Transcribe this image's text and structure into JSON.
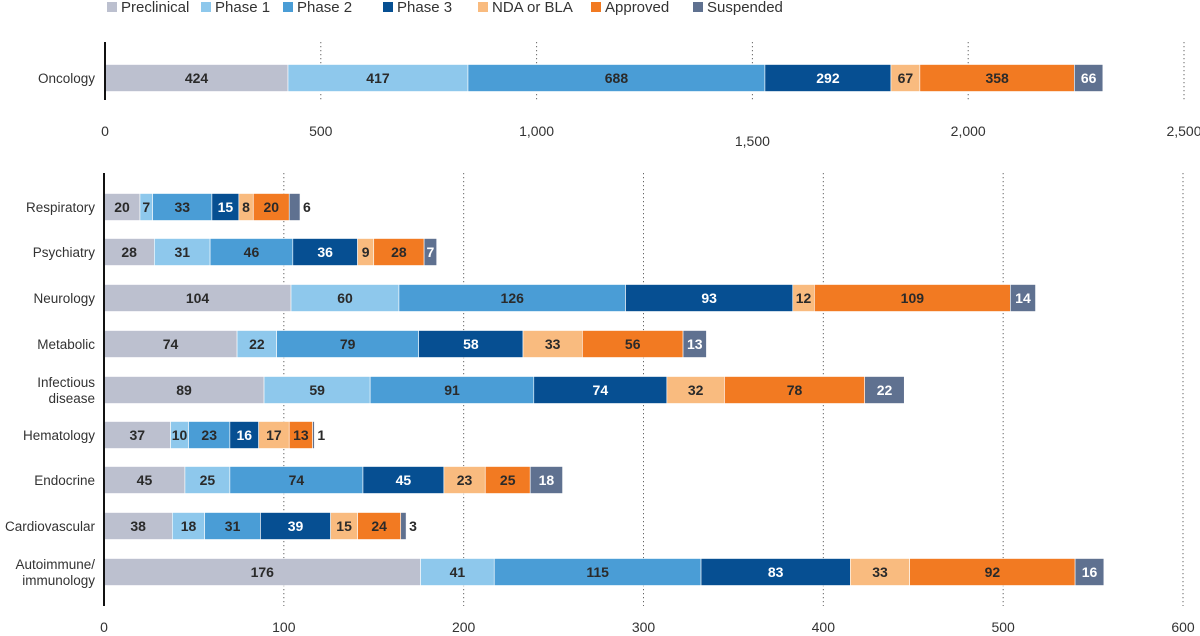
{
  "legend": [
    {
      "label": "Preclinical",
      "color": "#BCC0CF",
      "text_color": "#2a2a2a"
    },
    {
      "label": "Phase 1",
      "color": "#8EC8EC",
      "text_color": "#2a2a2a"
    },
    {
      "label": "Phase 2",
      "color": "#4A9DD6",
      "text_color": "#2a2a2a"
    },
    {
      "label": "Phase 3",
      "color": "#064F92",
      "text_color": "#ffffff"
    },
    {
      "label": "NDA or BLA",
      "color": "#F9BB7F",
      "text_color": "#2a2a2a"
    },
    {
      "label": "Approved",
      "color": "#F27A22",
      "text_color": "#2a2a2a"
    },
    {
      "label": "Suspended",
      "color": "#5F7190",
      "text_color": "#ffffff"
    }
  ],
  "chart_data": [
    {
      "type": "bar",
      "orientation": "horizontal",
      "stacked": true,
      "categories": [
        "Oncology"
      ],
      "series": [
        {
          "name": "Preclinical",
          "values": [
            424
          ]
        },
        {
          "name": "Phase 1",
          "values": [
            417
          ]
        },
        {
          "name": "Phase 2",
          "values": [
            688
          ]
        },
        {
          "name": "Phase 3",
          "values": [
            292
          ]
        },
        {
          "name": "NDA or BLA",
          "values": [
            67
          ]
        },
        {
          "name": "Approved",
          "values": [
            358
          ]
        },
        {
          "name": "Suspended",
          "values": [
            66
          ]
        }
      ],
      "xlim": [
        0,
        2500
      ],
      "xticks": [
        {
          "value": 0,
          "label": "0"
        },
        {
          "value": 500,
          "label": "500"
        },
        {
          "value": 1000,
          "label": "1,000"
        },
        {
          "value": 1500,
          "label": "1,500"
        },
        {
          "value": 2000,
          "label": "2,000"
        },
        {
          "value": 2500,
          "label": "2,500"
        }
      ],
      "grid": "vertical dotted",
      "legend": "top"
    },
    {
      "type": "bar",
      "orientation": "horizontal",
      "stacked": true,
      "categories": [
        "Respiratory",
        "Psychiatry",
        "Neurology",
        "Metabolic",
        "Infectious disease",
        "Hematology",
        "Endocrine",
        "Cardiovascular",
        "Autoimmune/ immunology"
      ],
      "series": [
        {
          "name": "Preclinical",
          "values": [
            20,
            28,
            104,
            74,
            89,
            37,
            45,
            38,
            176
          ]
        },
        {
          "name": "Phase 1",
          "values": [
            7,
            31,
            60,
            22,
            59,
            10,
            25,
            18,
            41
          ]
        },
        {
          "name": "Phase 2",
          "values": [
            33,
            46,
            126,
            79,
            91,
            23,
            74,
            31,
            115
          ]
        },
        {
          "name": "Phase 3",
          "values": [
            15,
            36,
            93,
            58,
            74,
            16,
            45,
            39,
            83
          ]
        },
        {
          "name": "NDA or BLA",
          "values": [
            8,
            9,
            12,
            33,
            32,
            17,
            23,
            15,
            33
          ]
        },
        {
          "name": "Approved",
          "values": [
            20,
            28,
            109,
            56,
            78,
            13,
            25,
            24,
            92
          ]
        },
        {
          "name": "Suspended",
          "values": [
            6,
            7,
            14,
            13,
            22,
            1,
            18,
            3,
            16
          ]
        }
      ],
      "xlim": [
        0,
        600
      ],
      "xticks": [
        {
          "value": 0,
          "label": "0"
        },
        {
          "value": 100,
          "label": "100"
        },
        {
          "value": 200,
          "label": "200"
        },
        {
          "value": 300,
          "label": "300"
        },
        {
          "value": 400,
          "label": "400"
        },
        {
          "value": 500,
          "label": "500"
        },
        {
          "value": 600,
          "label": "600"
        }
      ],
      "grid": "vertical dotted"
    }
  ]
}
